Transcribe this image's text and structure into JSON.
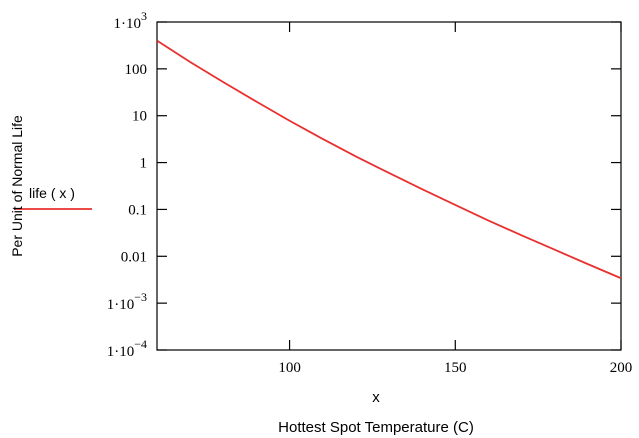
{
  "chart_data": {
    "type": "line",
    "xlabel": "x",
    "xlabel_secondary": "Hottest Spot Temperature (C)",
    "ylabel": "Per Unit of Normal Life",
    "xlim": [
      60,
      200
    ],
    "ylim": [
      0.0001,
      1000
    ],
    "y_scale": "log",
    "grid": false,
    "legend": {
      "position": "left",
      "entries": [
        {
          "label": "life ( x )",
          "color": "#e8302f"
        }
      ]
    },
    "x_ticks": [
      {
        "value": 100,
        "label": "100"
      },
      {
        "value": 150,
        "label": "150"
      },
      {
        "value": 200,
        "label": "200"
      }
    ],
    "y_ticks": [
      {
        "value": 1000,
        "base": "1·10",
        "exp": "3"
      },
      {
        "value": 100,
        "label": "100"
      },
      {
        "value": 10,
        "label": "10"
      },
      {
        "value": 1,
        "label": "1"
      },
      {
        "value": 0.1,
        "label": "0.1"
      },
      {
        "value": 0.01,
        "label": "0.01"
      },
      {
        "value": 0.001,
        "base": "1·10",
        "exp": "−3"
      },
      {
        "value": 0.0001,
        "base": "1·10",
        "exp": "−4"
      }
    ],
    "series": [
      {
        "name": "life ( x )",
        "color": "#e8302f",
        "x": [
          60,
          70,
          80,
          90,
          100,
          110,
          120,
          130,
          140,
          150,
          160,
          170,
          180,
          190,
          200
        ],
        "y": [
          400,
          140,
          52,
          20,
          7.8,
          3.2,
          1.35,
          0.6,
          0.27,
          0.125,
          0.058,
          0.028,
          0.0138,
          0.0068,
          0.0034
        ]
      }
    ]
  }
}
